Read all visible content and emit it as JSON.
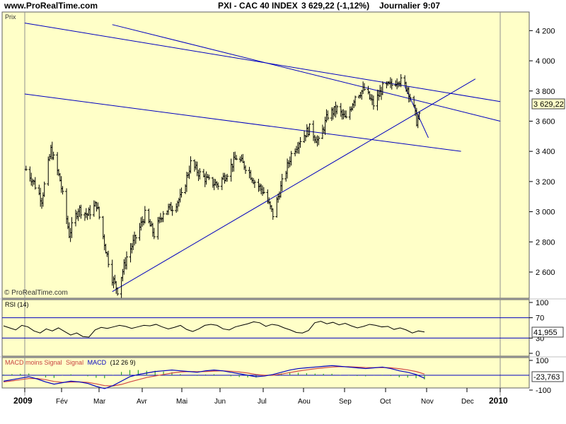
{
  "header": {
    "site": "www.ProRealTime.com",
    "ticker": "PXI - CAC 40 INDEX",
    "last": "3 629,22 (-1,12%)",
    "period": "Journalier",
    "time": "9:07"
  },
  "price_panel": {
    "label": "Prix",
    "watermark": "© ProRealTime.com",
    "last_value_label": "3 629,22",
    "y_ticks": [
      "4 200",
      "4 000",
      "3 800",
      "3 600",
      "3 400",
      "3 200",
      "3 000",
      "2 800",
      "2 600"
    ]
  },
  "rsi_panel": {
    "label": "RSI (14)",
    "value_label": "41,955",
    "y_ticks": [
      "100",
      "70",
      "30",
      "0"
    ]
  },
  "macd_panel": {
    "label_parts": [
      "MACD moins Signal",
      "Signal",
      "MACD",
      "(12 26 9)"
    ],
    "label_colors": [
      "#c84040",
      "#c84040",
      "#0000c0",
      "#000000"
    ],
    "value_label": "-23,763",
    "y_ticks": [
      "100",
      "-100"
    ]
  },
  "x_axis": {
    "labels": [
      "2009",
      "Fév",
      "Mar",
      "Avr",
      "Mai",
      "Jun",
      "Jul",
      "Aou",
      "Sep",
      "Oct",
      "Nov",
      "Dec",
      "2010"
    ]
  },
  "colors": {
    "background": "#ffffc8",
    "trendline": "#0000c0",
    "price_bars": "#000000",
    "macd_line": "#0000c0",
    "signal_line": "#d04848",
    "histogram": "#30a030",
    "grid": "#888888"
  },
  "chart_data": [
    {
      "type": "ohlc",
      "title": "PXI - CAC 40 INDEX",
      "x": [
        "2009-01",
        "2009-02",
        "2009-03",
        "2009-04",
        "2009-05",
        "2009-06",
        "2009-07",
        "2009-08",
        "2009-09",
        "2009-10",
        "2009-11",
        "2009-12",
        "2010-01"
      ],
      "close_path": [
        {
          "date": "2009-01-02",
          "value": 3280
        },
        {
          "date": "2009-01-07",
          "value": 3210
        },
        {
          "date": "2009-01-14",
          "value": 3080
        },
        {
          "date": "2009-01-21",
          "value": 3410
        },
        {
          "date": "2009-01-28",
          "value": 3210
        },
        {
          "date": "2009-02-04",
          "value": 2850
        },
        {
          "date": "2009-02-11",
          "value": 3020
        },
        {
          "date": "2009-02-18",
          "value": 2980
        },
        {
          "date": "2009-02-25",
          "value": 3050
        },
        {
          "date": "2009-03-04",
          "value": 2750
        },
        {
          "date": "2009-03-09",
          "value": 2560
        },
        {
          "date": "2009-03-13",
          "value": 2480
        },
        {
          "date": "2009-03-20",
          "value": 2700
        },
        {
          "date": "2009-03-27",
          "value": 2830
        },
        {
          "date": "2009-04-03",
          "value": 2980
        },
        {
          "date": "2009-04-10",
          "value": 2850
        },
        {
          "date": "2009-04-17",
          "value": 3000
        },
        {
          "date": "2009-04-24",
          "value": 3030
        },
        {
          "date": "2009-05-01",
          "value": 3100
        },
        {
          "date": "2009-05-08",
          "value": 3320
        },
        {
          "date": "2009-05-15",
          "value": 3250
        },
        {
          "date": "2009-05-22",
          "value": 3200
        },
        {
          "date": "2009-05-29",
          "value": 3180
        },
        {
          "date": "2009-06-05",
          "value": 3260
        },
        {
          "date": "2009-06-12",
          "value": 3360
        },
        {
          "date": "2009-06-19",
          "value": 3300
        },
        {
          "date": "2009-06-26",
          "value": 3200
        },
        {
          "date": "2009-07-03",
          "value": 3130
        },
        {
          "date": "2009-07-10",
          "value": 2980
        },
        {
          "date": "2009-07-17",
          "value": 3190
        },
        {
          "date": "2009-07-24",
          "value": 3380
        },
        {
          "date": "2009-07-31",
          "value": 3480
        },
        {
          "date": "2009-08-07",
          "value": 3550
        },
        {
          "date": "2009-08-14",
          "value": 3460
        },
        {
          "date": "2009-08-21",
          "value": 3640
        },
        {
          "date": "2009-08-28",
          "value": 3680
        },
        {
          "date": "2009-09-04",
          "value": 3610
        },
        {
          "date": "2009-09-11",
          "value": 3770
        },
        {
          "date": "2009-09-18",
          "value": 3810
        },
        {
          "date": "2009-09-25",
          "value": 3710
        },
        {
          "date": "2009-10-02",
          "value": 3820
        },
        {
          "date": "2009-10-09",
          "value": 3840
        },
        {
          "date": "2009-10-14",
          "value": 3880
        },
        {
          "date": "2009-10-21",
          "value": 3820
        },
        {
          "date": "2009-10-26",
          "value": 3680
        },
        {
          "date": "2009-10-28",
          "value": 3600
        },
        {
          "date": "2009-10-30",
          "value": 3629
        }
      ],
      "ylim": [
        2450,
        4300
      ],
      "trendlines": [
        {
          "from": {
            "date": "2009-01-01",
            "value": 4250
          },
          "to": {
            "date": "2009-12-31",
            "value": 3730
          }
        },
        {
          "from": {
            "date": "2009-03-09",
            "value": 4240
          },
          "to": {
            "date": "2009-12-31",
            "value": 3600
          }
        },
        {
          "from": {
            "date": "2009-01-01",
            "value": 3780
          },
          "to": {
            "date": "2009-12-01",
            "value": 3400
          }
        },
        {
          "from": {
            "date": "2009-03-09",
            "value": 2470
          },
          "to": {
            "date": "2009-12-12",
            "value": 3880
          }
        },
        {
          "from": {
            "date": "2009-10-19",
            "value": 3830
          },
          "to": {
            "date": "2009-11-06",
            "value": 3490
          }
        }
      ]
    },
    {
      "type": "line",
      "title": "RSI (14)",
      "ylim": [
        0,
        100
      ],
      "guides": [
        70,
        30
      ],
      "values": [
        54,
        50,
        46,
        55,
        52,
        44,
        40,
        48,
        44,
        50,
        43,
        36,
        40,
        33,
        32,
        46,
        51,
        49,
        52,
        55,
        53,
        49,
        52,
        55,
        54,
        57,
        52,
        48,
        51,
        55,
        47,
        43,
        48,
        55,
        57,
        55,
        48,
        46,
        52,
        55,
        58,
        62,
        60,
        53,
        57,
        55,
        50,
        46,
        41,
        40,
        45,
        60,
        63,
        58,
        61,
        56,
        59,
        54,
        50,
        53,
        57,
        55,
        52,
        53,
        47,
        50,
        46,
        40,
        44,
        42
      ]
    },
    {
      "type": "line",
      "title": "MACD (12 26 9)",
      "ylim": [
        -100,
        100
      ],
      "series": [
        {
          "name": "MACD",
          "values": [
            -40,
            -30,
            -20,
            -10,
            -25,
            -45,
            -60,
            -50,
            -40,
            -45,
            -55,
            -75,
            -90,
            -70,
            -40,
            -10,
            5,
            15,
            25,
            30,
            35,
            30,
            25,
            20,
            30,
            35,
            30,
            20,
            10,
            0,
            -10,
            -5,
            5,
            20,
            35,
            45,
            50,
            55,
            60,
            65,
            60,
            55,
            50,
            45,
            50,
            55,
            45,
            30,
            20,
            5,
            -20
          ]
        },
        {
          "name": "Signal",
          "values": [
            -45,
            -38,
            -30,
            -22,
            -22,
            -30,
            -42,
            -48,
            -46,
            -45,
            -48,
            -58,
            -70,
            -72,
            -62,
            -45,
            -30,
            -15,
            -5,
            5,
            15,
            22,
            25,
            24,
            25,
            28,
            30,
            27,
            22,
            15,
            5,
            0,
            0,
            8,
            18,
            28,
            36,
            44,
            50,
            55,
            58,
            57,
            55,
            52,
            51,
            52,
            50,
            44,
            36,
            25,
            8
          ]
        },
        {
          "name": "MACD moins Signal",
          "values": [
            5,
            8,
            10,
            12,
            -3,
            -15,
            -18,
            -2,
            6,
            0,
            -7,
            -17,
            -20,
            2,
            22,
            35,
            35,
            30,
            30,
            25,
            20,
            8,
            0,
            -4,
            5,
            7,
            0,
            -7,
            -12,
            -15,
            -15,
            -5,
            5,
            12,
            17,
            17,
            14,
            11,
            10,
            10,
            2,
            -2,
            -5,
            -7,
            -1,
            3,
            -5,
            -14,
            -16,
            -20,
            -28
          ]
        }
      ]
    }
  ]
}
